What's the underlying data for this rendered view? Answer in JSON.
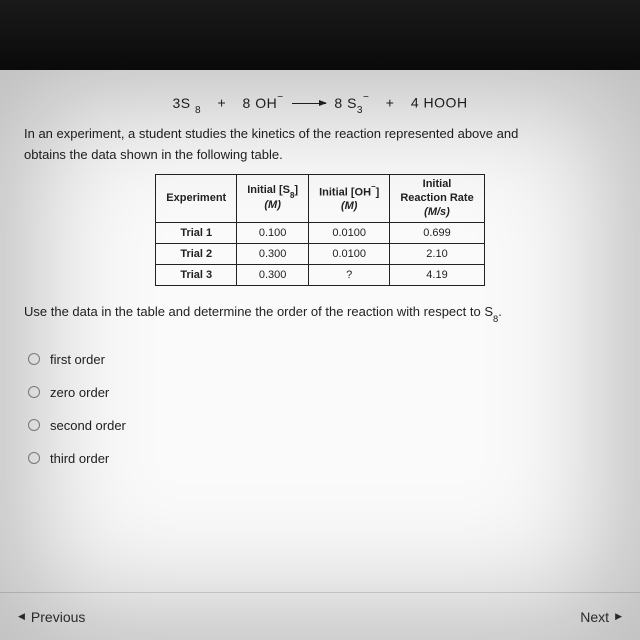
{
  "equation": {
    "lhs1_coef": "3S",
    "lhs1_sub": "8",
    "plus": "+",
    "lhs2_coef": "8 OH",
    "lhs2_sup": "−",
    "rhs1_coef": "8 S",
    "rhs1_sub": "3",
    "rhs1_sup": "−",
    "rhs2": "4 HOOH"
  },
  "intro_a": "In an experiment, a student studies the kinetics of the reaction represented above and",
  "intro_b": "obtains the data shown in the following table.",
  "table": {
    "headers": {
      "c1": "Experiment",
      "c2a": "Initial [S",
      "c2sub": "8",
      "c2b": "]",
      "c3a": "Initial [OH",
      "c3sup": "−",
      "c3b": "]",
      "c4a": "Initial",
      "c4b": "Reaction Rate",
      "unitM": "(M)",
      "unitMs": "(M/s)"
    },
    "rows": [
      {
        "exp": "Trial 1",
        "s8": "0.100",
        "oh": "0.0100",
        "rate": "0.699"
      },
      {
        "exp": "Trial 2",
        "s8": "0.300",
        "oh": "0.0100",
        "rate": "2.10"
      },
      {
        "exp": "Trial 3",
        "s8": "0.300",
        "oh": "?",
        "rate": "4.19"
      }
    ]
  },
  "instr_a": "Use the data in the table and determine the order of the reaction with respect to S",
  "instr_sub": "8",
  "instr_b": ".",
  "options": [
    "first order",
    "zero order",
    "second order",
    "third order"
  ],
  "nav": {
    "prev": "Previous",
    "next": "Next"
  },
  "style": {
    "bg": "#fafafa",
    "text": "#222",
    "border": "#222",
    "radio_border": "#888",
    "divider": "#d6d6d6",
    "font_family": "Arial, sans-serif",
    "table_font_size": 11,
    "body_font_size": 13
  }
}
